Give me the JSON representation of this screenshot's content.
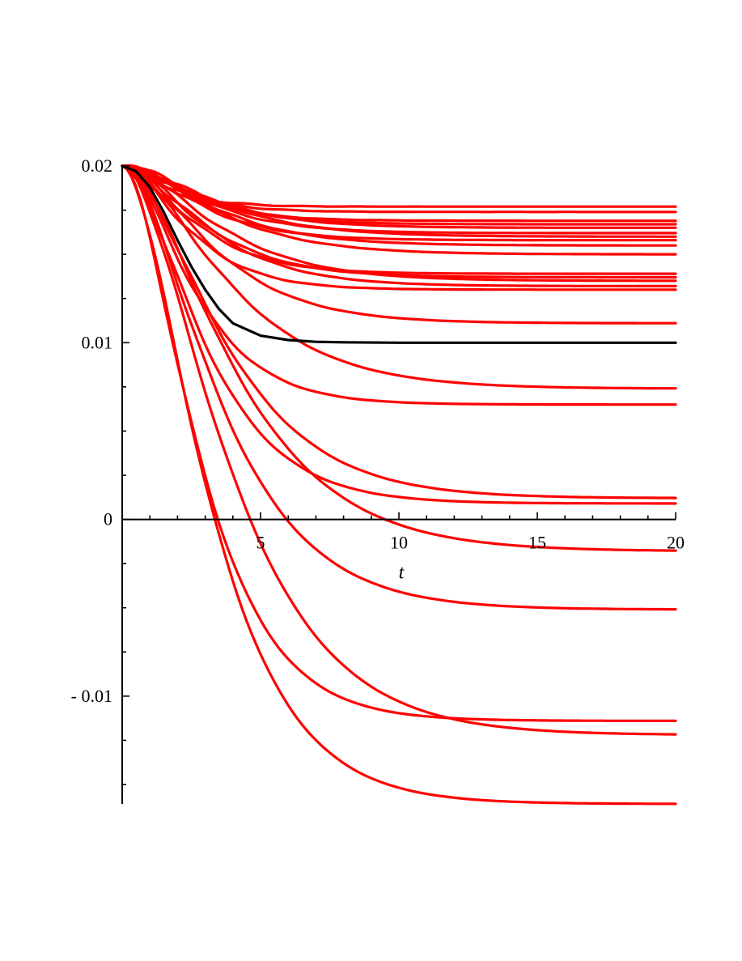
{
  "chart_data": {
    "type": "line",
    "title": "",
    "xlabel": "t",
    "ylabel": "",
    "xlim": [
      0,
      20
    ],
    "ylim": [
      -0.0161,
      0.02
    ],
    "x_ticks": [
      {
        "value": 5,
        "label": "5"
      },
      {
        "value": 10,
        "label": "10"
      },
      {
        "value": 15,
        "label": "15"
      },
      {
        "value": 20,
        "label": "20"
      }
    ],
    "y_ticks": [
      {
        "value": 0.02,
        "label": "0.02"
      },
      {
        "value": 0.01,
        "label": "0.01"
      },
      {
        "value": 0,
        "label": "0"
      },
      {
        "value": -0.01,
        "label": "- 0.01"
      }
    ],
    "minor_x_step": 1,
    "minor_y_step": 0.0025,
    "grid": false,
    "legend": "none",
    "initial_value": 0.02,
    "colors": {
      "trajectories": "#ff0000",
      "mean": "#000000"
    },
    "mean_series": {
      "x": [
        0,
        0.5,
        1,
        1.5,
        2,
        2.5,
        3,
        3.5,
        4,
        5,
        6,
        7,
        8,
        10,
        15,
        20
      ],
      "values": [
        0.02,
        0.0197,
        0.0188,
        0.0174,
        0.0158,
        0.0143,
        0.013,
        0.0119,
        0.0111,
        0.0104,
        0.01015,
        0.01005,
        0.01002,
        0.01,
        0.01,
        0.01
      ]
    },
    "series": [
      {
        "tau": 1.0,
        "final": 0.0177
      },
      {
        "tau": 1.2,
        "final": 0.0174
      },
      {
        "tau": 1.4,
        "final": 0.0169
      },
      {
        "tau": 1.6,
        "final": 0.0167
      },
      {
        "tau": 1.8,
        "final": 0.0165
      },
      {
        "tau": 1.7,
        "final": 0.0162
      },
      {
        "tau": 2.0,
        "final": 0.016
      },
      {
        "tau": 1.6,
        "final": 0.0158
      },
      {
        "tau": 1.9,
        "final": 0.0155
      },
      {
        "tau": 2.0,
        "final": 0.015
      },
      {
        "tau": 1.5,
        "final": 0.0139
      },
      {
        "tau": 1.7,
        "final": 0.0137
      },
      {
        "tau": 2.0,
        "final": 0.0135
      },
      {
        "tau": 1.8,
        "final": 0.0132
      },
      {
        "tau": 1.4,
        "final": 0.013
      },
      {
        "tau": 1.9,
        "final": 0.0111
      },
      {
        "tau": 2.2,
        "final": 0.0074
      },
      {
        "tau": 1.5,
        "final": 0.0065
      },
      {
        "tau": 2.1,
        "final": 0.0012
      },
      {
        "tau": 1.7,
        "final": 0.0009
      },
      {
        "tau": 2.3,
        "final": -0.0018
      },
      {
        "tau": 2.0,
        "final": -0.0051
      },
      {
        "tau": 1.6,
        "final": -0.0114
      },
      {
        "tau": 2.2,
        "final": -0.0122
      },
      {
        "tau": 1.8,
        "final": -0.0161
      }
    ]
  }
}
